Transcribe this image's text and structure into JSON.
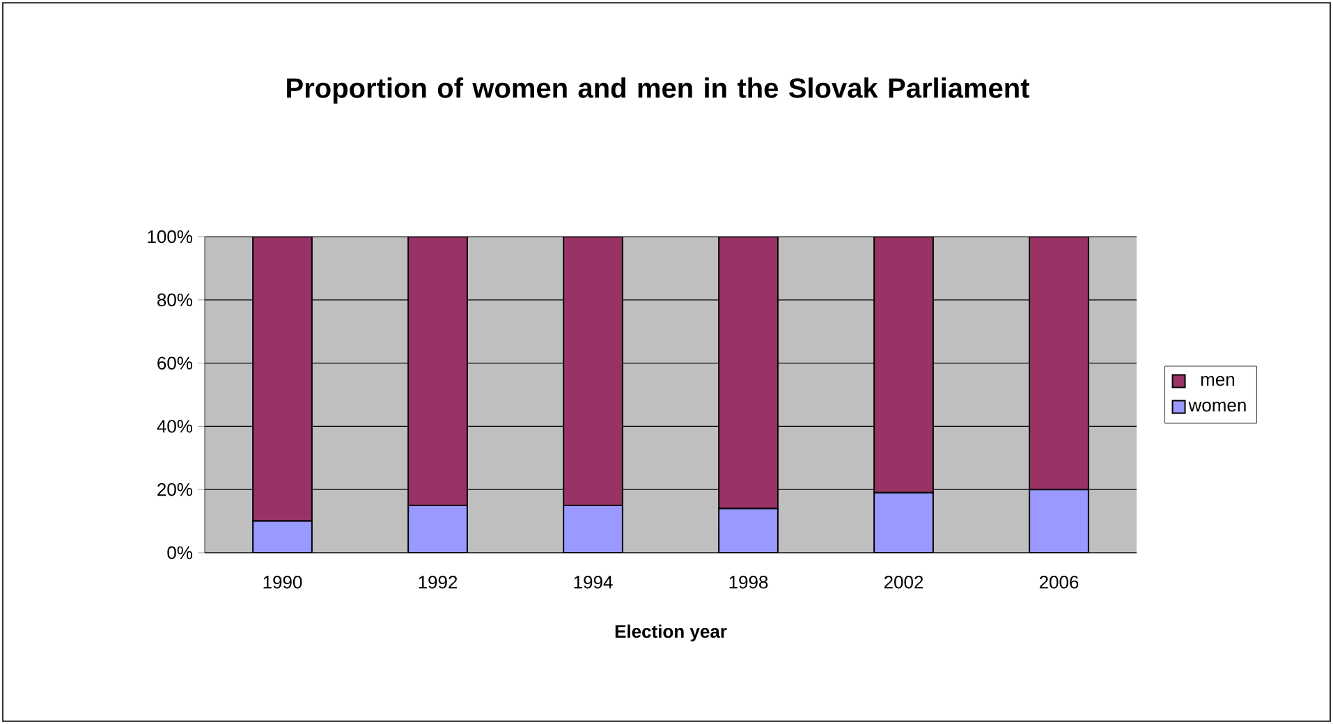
{
  "chart_data": {
    "type": "bar",
    "title": "Proportion of women and men in the Slovak Parliament",
    "xlabel": "Election year",
    "categories": [
      "1990",
      "1992",
      "1994",
      "1998",
      "2002",
      "2006"
    ],
    "stacked": true,
    "legend": "right",
    "grid": "y",
    "ylim": [
      0,
      100
    ],
    "yticks": [
      {
        "value": 0,
        "label": "0%"
      },
      {
        "value": 20,
        "label": "20%"
      },
      {
        "value": 40,
        "label": "40%"
      },
      {
        "value": 60,
        "label": "60%"
      },
      {
        "value": 80,
        "label": "80%"
      },
      {
        "value": 100,
        "label": "100%"
      }
    ],
    "series": [
      {
        "name": "women",
        "color": "#9999ff",
        "values": [
          10,
          15,
          15,
          14,
          19,
          20
        ]
      },
      {
        "name": "men",
        "color": "#993366",
        "values": [
          90,
          85,
          85,
          86,
          81,
          80
        ]
      }
    ]
  }
}
